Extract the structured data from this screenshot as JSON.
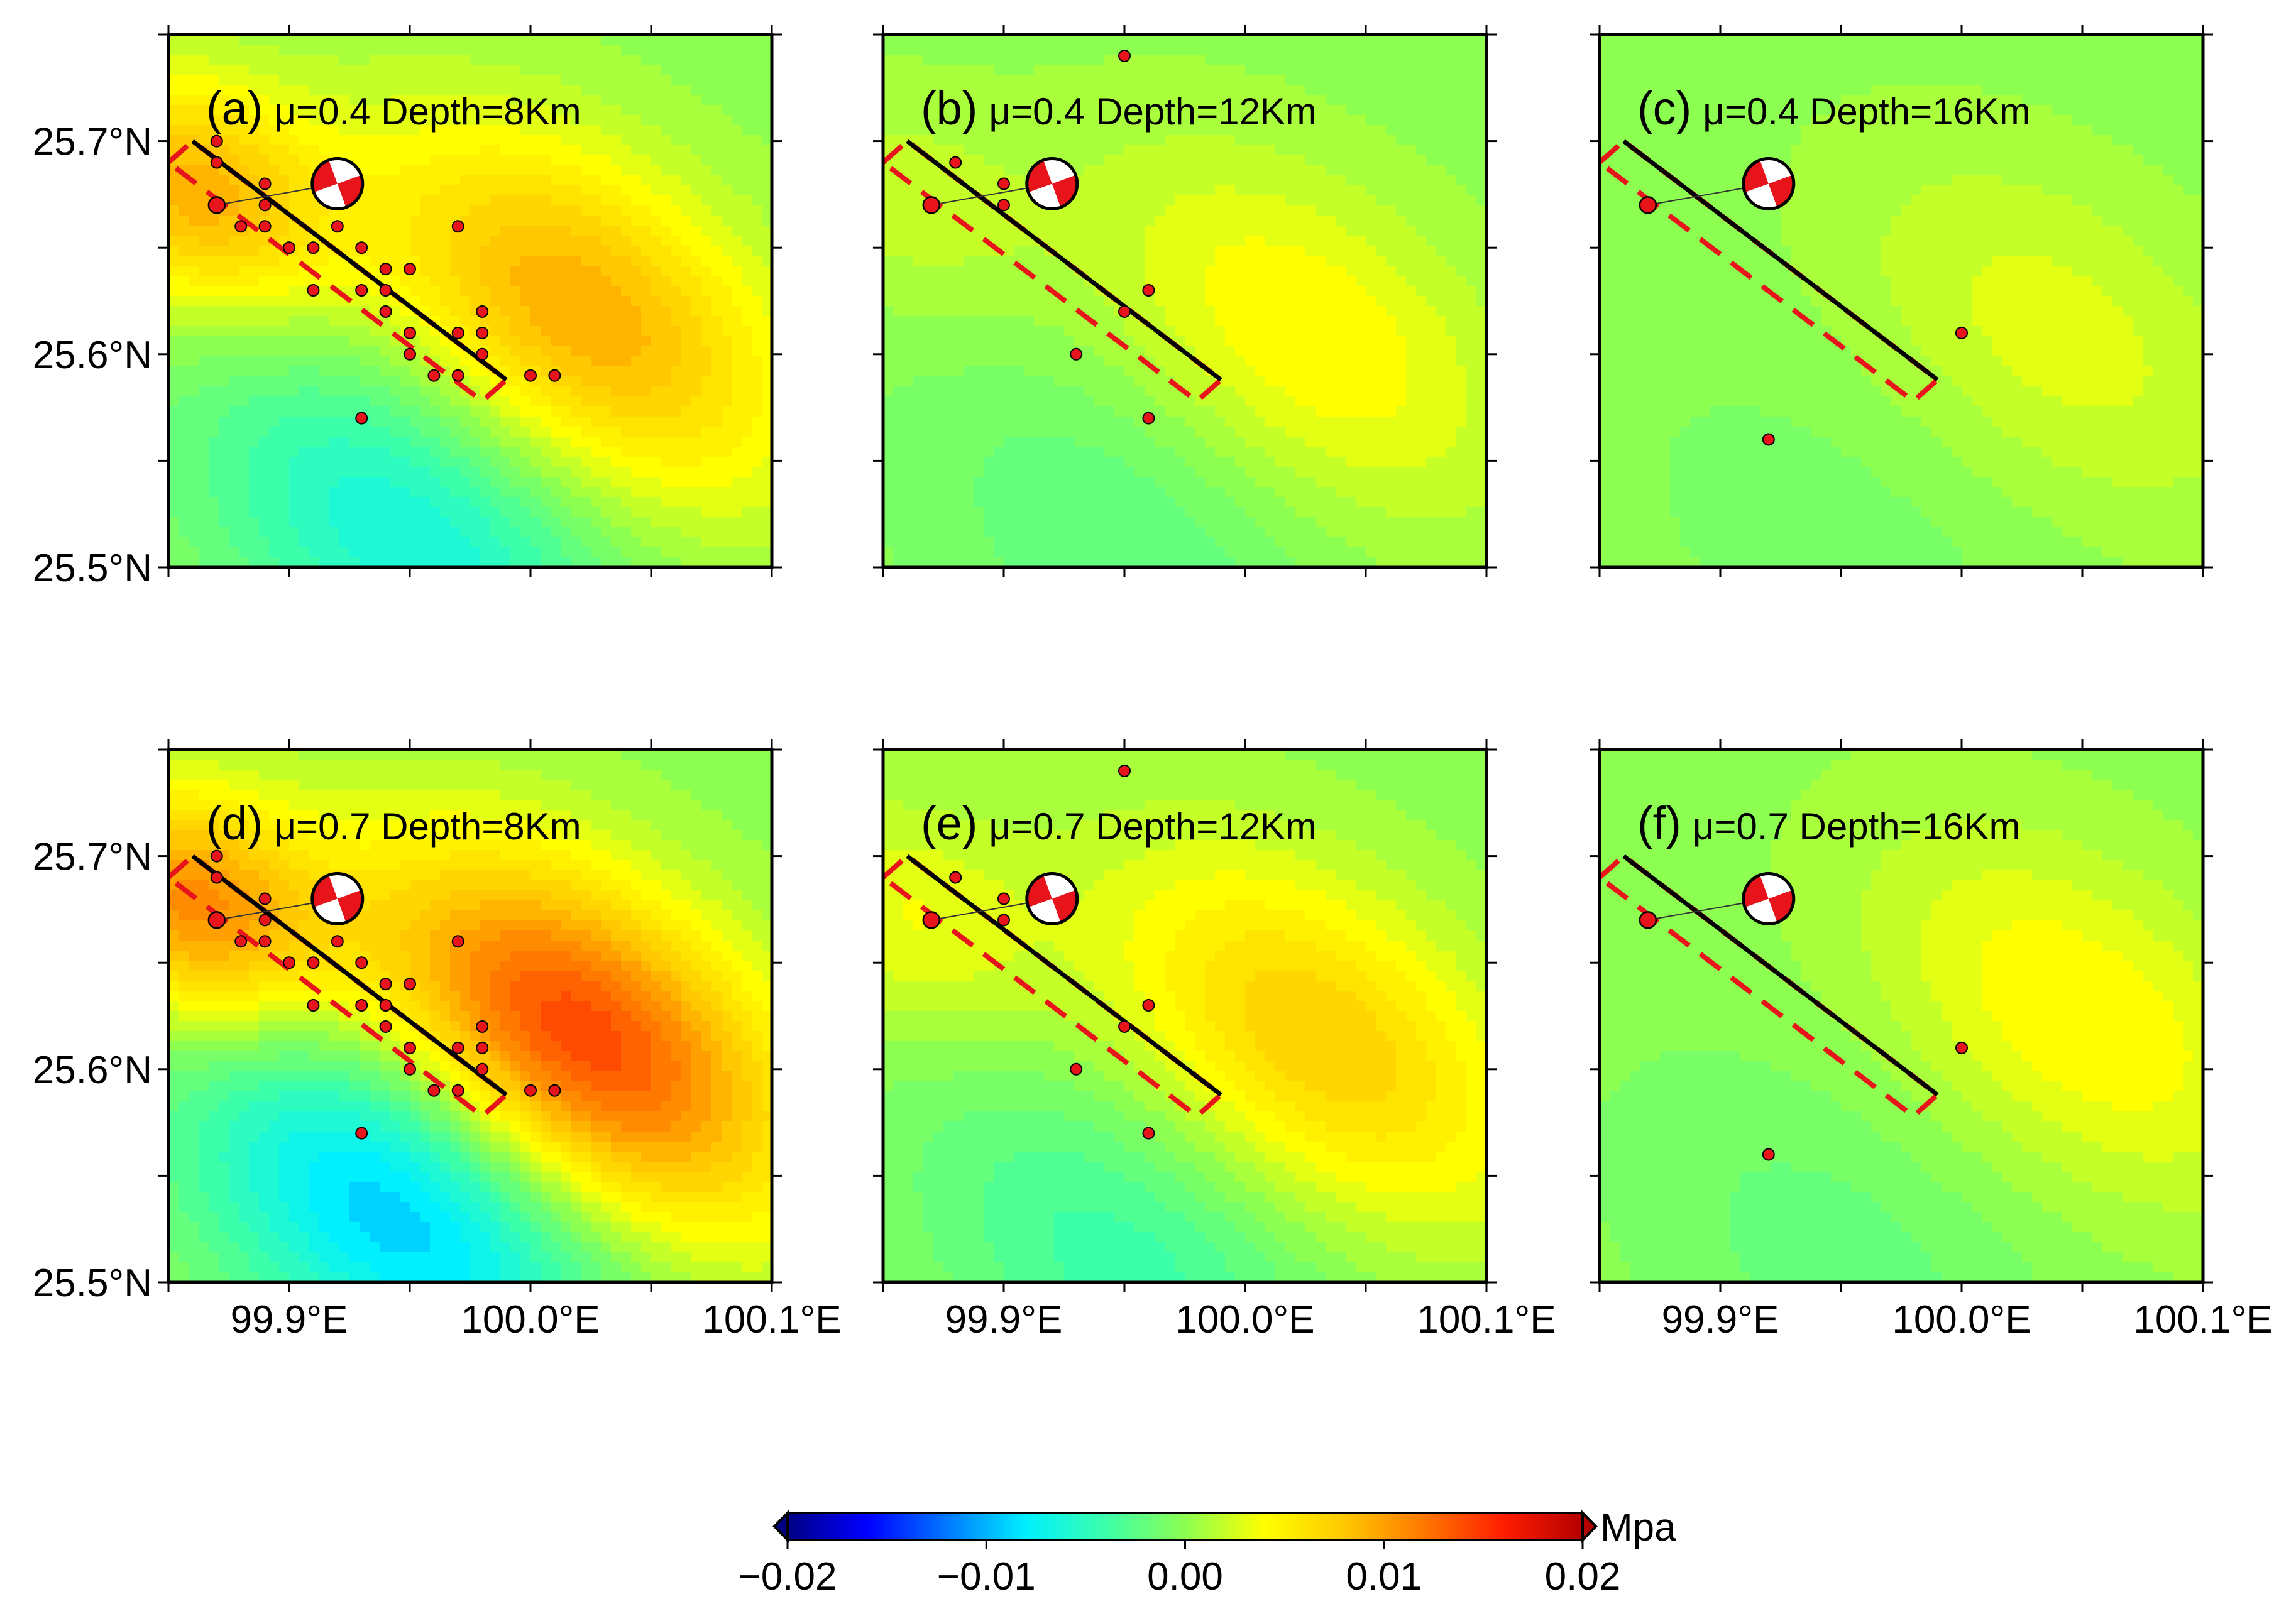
{
  "panels": [
    {
      "letter": "(a)",
      "title": "μ=0.4 Depth=8Km",
      "mu": 0.4,
      "depth_km": 8,
      "stress": [
        {
          "lon": 100.02,
          "lat": 25.62,
          "value": 0.0095
        },
        {
          "lon": 99.95,
          "lat": 25.515,
          "value": -0.0065
        },
        {
          "lon": 99.86,
          "lat": 25.675,
          "value": 0.009
        }
      ],
      "events": [
        [
          99.87,
          25.7
        ],
        [
          99.87,
          25.69
        ],
        [
          99.87,
          25.67
        ],
        [
          99.88,
          25.66
        ],
        [
          99.89,
          25.67
        ],
        [
          99.89,
          25.68
        ],
        [
          99.89,
          25.66
        ],
        [
          99.9,
          25.65
        ],
        [
          99.91,
          25.65
        ],
        [
          99.91,
          25.63
        ],
        [
          99.92,
          25.66
        ],
        [
          99.93,
          25.65
        ],
        [
          99.93,
          25.63
        ],
        [
          99.94,
          25.64
        ],
        [
          99.94,
          25.63
        ],
        [
          99.94,
          25.62
        ],
        [
          99.95,
          25.64
        ],
        [
          99.95,
          25.61
        ],
        [
          99.95,
          25.6
        ],
        [
          99.96,
          25.59
        ],
        [
          99.97,
          25.66
        ],
        [
          99.97,
          25.61
        ],
        [
          99.97,
          25.59
        ],
        [
          99.98,
          25.62
        ],
        [
          99.98,
          25.61
        ],
        [
          99.98,
          25.6
        ],
        [
          100.0,
          25.59
        ],
        [
          100.01,
          25.59
        ],
        [
          99.93,
          25.57
        ]
      ]
    },
    {
      "letter": "(b)",
      "title": "μ=0.4 Depth=12Km",
      "mu": 0.4,
      "depth_km": 12,
      "stress": [
        {
          "lon": 100.025,
          "lat": 25.61,
          "value": 0.0045
        },
        {
          "lon": 99.95,
          "lat": 25.51,
          "value": -0.0025
        },
        {
          "lon": 99.86,
          "lat": 25.67,
          "value": 0.002
        }
      ],
      "events": [
        [
          99.95,
          25.74
        ],
        [
          99.88,
          25.69
        ],
        [
          99.9,
          25.68
        ],
        [
          99.87,
          25.67
        ],
        [
          99.9,
          25.67
        ],
        [
          99.96,
          25.63
        ],
        [
          99.95,
          25.62
        ],
        [
          99.93,
          25.6
        ],
        [
          99.96,
          25.57
        ]
      ]
    },
    {
      "letter": "(c)",
      "title": "μ=0.4 Depth=16Km",
      "mu": 0.4,
      "depth_km": 16,
      "stress": [
        {
          "lon": 100.04,
          "lat": 25.61,
          "value": 0.003
        },
        {
          "lon": 99.95,
          "lat": 25.51,
          "value": -0.001
        }
      ],
      "events": [
        [
          99.87,
          25.67
        ],
        [
          100.0,
          25.61
        ],
        [
          99.92,
          25.56
        ]
      ]
    },
    {
      "letter": "(d)",
      "title": "μ=0.7 Depth=8Km",
      "mu": 0.7,
      "depth_km": 8,
      "stress": [
        {
          "lon": 100.02,
          "lat": 25.615,
          "value": 0.0145
        },
        {
          "lon": 99.945,
          "lat": 25.535,
          "value": -0.0095
        },
        {
          "lon": 99.86,
          "lat": 25.675,
          "value": 0.011
        }
      ],
      "events": [
        [
          99.87,
          25.7
        ],
        [
          99.87,
          25.69
        ],
        [
          99.87,
          25.67
        ],
        [
          99.88,
          25.66
        ],
        [
          99.89,
          25.67
        ],
        [
          99.89,
          25.68
        ],
        [
          99.89,
          25.66
        ],
        [
          99.9,
          25.65
        ],
        [
          99.91,
          25.65
        ],
        [
          99.91,
          25.63
        ],
        [
          99.92,
          25.66
        ],
        [
          99.93,
          25.65
        ],
        [
          99.93,
          25.63
        ],
        [
          99.94,
          25.64
        ],
        [
          99.94,
          25.63
        ],
        [
          99.94,
          25.62
        ],
        [
          99.95,
          25.64
        ],
        [
          99.95,
          25.61
        ],
        [
          99.95,
          25.6
        ],
        [
          99.96,
          25.59
        ],
        [
          99.97,
          25.66
        ],
        [
          99.97,
          25.61
        ],
        [
          99.97,
          25.59
        ],
        [
          99.98,
          25.62
        ],
        [
          99.98,
          25.61
        ],
        [
          99.98,
          25.6
        ],
        [
          100.0,
          25.59
        ],
        [
          100.01,
          25.59
        ],
        [
          99.93,
          25.57
        ]
      ]
    },
    {
      "letter": "(e)",
      "title": "μ=0.7 Depth=12Km",
      "mu": 0.7,
      "depth_km": 12,
      "stress": [
        {
          "lon": 100.03,
          "lat": 25.615,
          "value": 0.0075
        },
        {
          "lon": 99.95,
          "lat": 25.51,
          "value": -0.004
        },
        {
          "lon": 99.86,
          "lat": 25.67,
          "value": 0.0035
        }
      ],
      "events": [
        [
          99.95,
          25.74
        ],
        [
          99.88,
          25.69
        ],
        [
          99.9,
          25.68
        ],
        [
          99.87,
          25.67
        ],
        [
          99.9,
          25.67
        ],
        [
          99.96,
          25.63
        ],
        [
          99.95,
          25.62
        ],
        [
          99.93,
          25.6
        ],
        [
          99.96,
          25.57
        ]
      ]
    },
    {
      "letter": "(f)",
      "title": "μ=0.7 Depth=16Km",
      "mu": 0.7,
      "depth_km": 16,
      "stress": [
        {
          "lon": 100.05,
          "lat": 25.625,
          "value": 0.0045
        },
        {
          "lon": 99.95,
          "lat": 25.51,
          "value": -0.002
        }
      ],
      "events": [
        [
          99.87,
          25.67
        ],
        [
          100.0,
          25.61
        ],
        [
          99.92,
          25.56
        ]
      ]
    }
  ],
  "map": {
    "lon_range": [
      99.85,
      100.1
    ],
    "lat_range": [
      25.5,
      25.75
    ],
    "x_ticks": [
      "99.9°E",
      "100.0°E",
      "100.1°E"
    ],
    "x_tick_values": [
      99.9,
      100.0,
      100.1
    ],
    "y_ticks": [
      "25.5°N",
      "25.6°N",
      "25.7°N"
    ],
    "y_tick_values": [
      25.5,
      25.6,
      25.7
    ],
    "minor_x_tick_values": [
      99.85,
      99.95,
      100.05
    ],
    "minor_y_tick_values": [
      25.75,
      25.65,
      25.55
    ]
  },
  "fault": {
    "trace": [
      [
        99.86,
        25.7
      ],
      [
        99.99,
        25.588
      ]
    ],
    "surface_projection": [
      [
        99.85,
        25.69
      ],
      [
        99.86,
        25.7
      ],
      [
        99.99,
        25.588
      ],
      [
        99.98,
        25.578
      ]
    ],
    "trace_color": "#000000",
    "projection_color": "#e8141c"
  },
  "mainshock": {
    "lon": 99.87,
    "lat": 25.67,
    "beachball_lon": 99.92,
    "beachball_lat": 25.68
  },
  "colorbar": {
    "min": -0.02,
    "max": 0.02,
    "ticks": [
      "−0.02",
      "−0.01",
      "0.00",
      "0.01",
      "0.02"
    ],
    "tick_values": [
      -0.02,
      -0.01,
      0.0,
      0.01,
      0.02
    ],
    "unit": "Mpa",
    "stops": [
      "#000085",
      "#0000ff",
      "#0078ff",
      "#00f0ff",
      "#3cffaa",
      "#8cff50",
      "#ffff00",
      "#ffc800",
      "#ff7800",
      "#ff1e00",
      "#b40000"
    ]
  }
}
